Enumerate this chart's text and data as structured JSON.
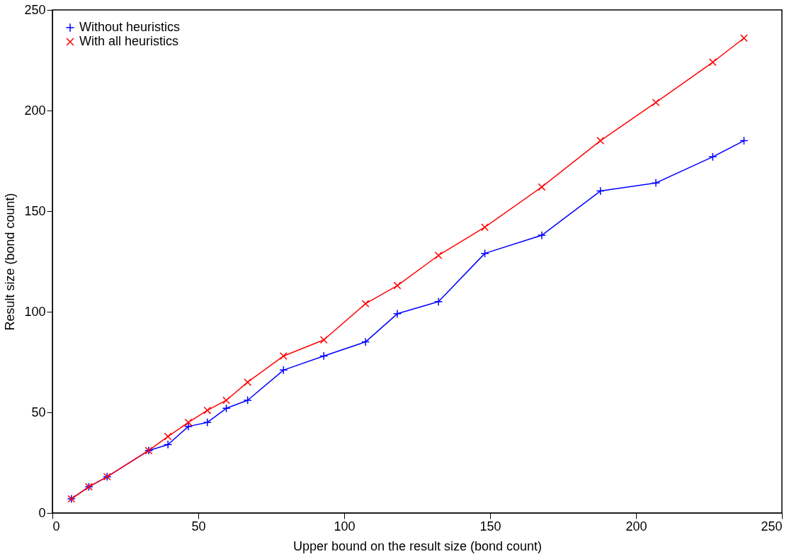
{
  "chart_data": {
    "type": "line",
    "xlabel": "Upper bound on the result size (bond count)",
    "ylabel": "Result size (bond count)",
    "x": [
      6.5,
      12.5,
      18.75,
      33,
      39.6,
      46.6,
      53.1,
      59.6,
      66.9,
      79.2,
      93,
      107.3,
      118.2,
      132.3,
      148.2,
      167.7,
      187.8,
      206.8,
      226.3,
      237
    ],
    "series": [
      {
        "name": "Without heuristics",
        "color": "#0000ff",
        "marker": "cross",
        "values": [
          7,
          13,
          18,
          31,
          34,
          43,
          45,
          52,
          56,
          71,
          78,
          85,
          99,
          105,
          129,
          138,
          160,
          164,
          177,
          185
        ]
      },
      {
        "name": "With all heuristics",
        "color": "#ff0000",
        "marker": "x",
        "values": [
          7,
          13,
          18,
          31,
          38,
          45,
          51,
          56,
          65,
          78,
          86,
          104,
          113,
          128,
          142,
          162,
          185,
          204,
          224,
          236
        ]
      }
    ],
    "xlim": [
      0,
      250
    ],
    "xticks": [
      0,
      50,
      100,
      150,
      200,
      250
    ],
    "ylim": [
      0,
      250
    ],
    "yticks": [
      0,
      50,
      100,
      150,
      200,
      250
    ],
    "grid": false,
    "legend": "top left",
    "line_style": "solid"
  }
}
